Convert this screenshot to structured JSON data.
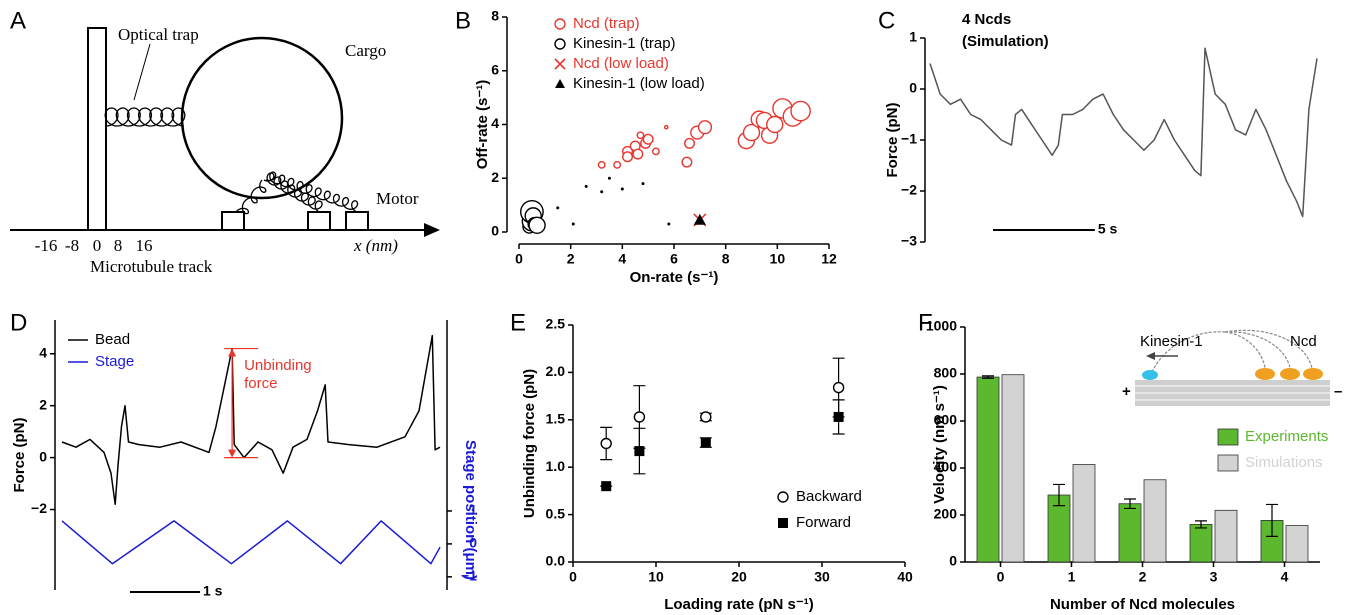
{
  "diagram_a": {
    "panel": "A",
    "trap_label": "Optical trap",
    "cargo_label": "Cargo",
    "motor_label": "Motor",
    "track_label": "Microtubule track",
    "axis_label": "x (nm)",
    "ticks": [
      "-16",
      "-8",
      "0",
      "8",
      "16"
    ]
  },
  "chart_data": [
    {
      "panel": "B",
      "type": "scatter",
      "xlabel": "On-rate (s⁻¹)",
      "ylabel": "Off-rate (s⁻¹)",
      "xlim": [
        0,
        12
      ],
      "xticks": [
        0,
        2,
        4,
        6,
        8,
        10,
        12
      ],
      "ylim": [
        0,
        8
      ],
      "yticks": [
        0,
        2,
        4,
        6,
        8
      ],
      "legend": "upper left",
      "series": [
        {
          "name": "Ncd (trap)",
          "color": "#e8362f",
          "marker": "open-circle",
          "x": [
            3.2,
            3.8,
            4.2,
            4.2,
            4.5,
            4.7,
            4.9,
            5.0,
            4.6,
            5.3,
            5.7,
            6.5,
            6.6,
            6.9,
            7.2,
            8.8,
            9.0,
            9.3,
            9.5,
            9.7,
            9.9,
            10.2,
            10.6,
            10.9
          ],
          "values": [
            2.5,
            2.5,
            3.0,
            2.8,
            3.2,
            3.6,
            3.3,
            3.45,
            2.9,
            3.0,
            3.9,
            2.6,
            3.3,
            3.7,
            3.9,
            3.4,
            3.7,
            4.2,
            4.15,
            3.6,
            4.0,
            4.6,
            4.3,
            4.5
          ],
          "sizes": [
            2,
            2,
            3,
            3,
            3,
            2,
            3,
            3,
            3,
            2,
            1,
            3,
            3,
            4,
            4,
            5,
            5,
            5,
            5,
            5,
            5,
            6,
            6,
            6
          ]
        },
        {
          "name": "Kinesin-1 (trap)",
          "color": "#000000",
          "marker": "open-circle",
          "x": [
            0.4,
            0.5,
            0.5,
            0.55,
            0.6,
            0.7,
            1.5,
            2.1,
            2.6,
            3.2,
            3.5,
            4.0,
            4.8,
            5.8
          ],
          "values": [
            0.2,
            0.4,
            0.75,
            0.6,
            0.3,
            0.25,
            0.9,
            0.3,
            1.7,
            1.5,
            2.0,
            1.6,
            1.8,
            0.3
          ],
          "sizes": [
            4,
            6,
            7,
            5,
            4,
            5,
            0.5,
            0.5,
            0.5,
            0.5,
            0.5,
            0.5,
            0.5,
            0.5
          ]
        },
        {
          "name": "Ncd (low load)",
          "color": "#e8362f",
          "marker": "x",
          "x": [
            7.0
          ],
          "values": [
            0.45
          ]
        },
        {
          "name": "Kinesin-1 (low load)",
          "color": "#000000",
          "marker": "triangle",
          "x": [
            7.0
          ],
          "values": [
            0.45
          ]
        }
      ]
    },
    {
      "panel": "C",
      "type": "line",
      "title": "4 Ncds",
      "subtitle": "(Simulation)",
      "ylabel": "Force (pN)",
      "xlim": [
        0,
        19
      ],
      "ylim": [
        -3,
        1
      ],
      "yticks": [
        {
          "value": -3,
          "label": "−3"
        },
        {
          "value": -2,
          "label": "−2"
        },
        {
          "value": -1,
          "label": "−1"
        },
        0,
        1
      ],
      "scale_bar": {
        "value": 5,
        "label": "5 s"
      },
      "x": [
        0,
        0.5,
        1,
        1.5,
        2,
        2.5,
        3,
        3.5,
        4,
        4.2,
        4.5,
        5,
        5.5,
        6,
        6.3,
        6.5,
        7,
        7.5,
        8,
        8.5,
        9,
        9.5,
        10,
        10.5,
        11,
        11.5,
        12,
        12.5,
        13,
        13.3,
        13.5,
        14,
        14.5,
        15,
        15.5,
        16,
        16.5,
        17,
        17.5,
        18,
        18.3,
        18.6,
        19
      ],
      "series": [
        {
          "color": "#555555",
          "values": [
            0.5,
            -0.1,
            -0.3,
            -0.2,
            -0.5,
            -0.6,
            -0.8,
            -1.0,
            -1.1,
            -0.5,
            -0.4,
            -0.7,
            -1.0,
            -1.3,
            -1.1,
            -0.5,
            -0.5,
            -0.4,
            -0.2,
            -0.1,
            -0.5,
            -0.8,
            -1.0,
            -1.2,
            -1.0,
            -0.6,
            -1.0,
            -1.3,
            -1.6,
            -1.7,
            0.8,
            -0.1,
            -0.3,
            -0.8,
            -0.9,
            -0.4,
            -0.8,
            -1.3,
            -1.8,
            -2.2,
            -2.5,
            -0.4,
            0.6
          ]
        }
      ]
    },
    {
      "panel": "D",
      "type": "line",
      "ylabel": "Force (pN)",
      "y2label": "Stage position (μm)",
      "annotation": "Unbinding force",
      "xlim": [
        0,
        5.4
      ],
      "ylim": [
        -5.1,
        5.3
      ],
      "yticks": [
        {
          "value": -2,
          "label": "−2"
        },
        0,
        2,
        4
      ],
      "y2lim": [
        -1.4,
        6.8
      ],
      "y2ticks": [
        {
          "value": -1,
          "label": "−1"
        },
        0,
        1
      ],
      "legend": "upper left",
      "scale_bar": {
        "value": 1,
        "label": "1 s"
      },
      "series": [
        {
          "name": "Bead",
          "color": "#000000",
          "x": [
            0,
            0.2,
            0.4,
            0.6,
            0.7,
            0.76,
            0.8,
            0.85,
            0.9,
            0.95,
            1.1,
            1.4,
            1.7,
            2.0,
            2.1,
            2.2,
            2.3,
            2.43,
            2.46,
            2.6,
            2.8,
            3.0,
            3.16,
            3.3,
            3.5,
            3.65,
            3.76,
            3.8,
            4.1,
            4.5,
            4.9,
            5.1,
            5.29,
            5.33,
            5.4
          ],
          "values": [
            0.6,
            0.4,
            0.7,
            0.2,
            -0.6,
            -1.8,
            -0.3,
            1.2,
            2.0,
            0.6,
            0.5,
            0.4,
            0.6,
            0.3,
            0.2,
            1.2,
            2.5,
            4.2,
            0.5,
            0.0,
            0.6,
            0.3,
            -0.6,
            0.4,
            0.7,
            1.8,
            2.8,
            0.6,
            0.5,
            0.4,
            0.8,
            1.8,
            4.7,
            0.3,
            0.4
          ]
        },
        {
          "name": "Stage",
          "color": "#1a1ad6",
          "axis": "y2",
          "x": [
            0,
            0.72,
            1.6,
            2.42,
            3.22,
            3.98,
            4.56,
            5.27,
            5.4
          ],
          "values": [
            0.7,
            -0.6,
            0.7,
            -0.6,
            0.7,
            -0.6,
            0.7,
            -0.6,
            -0.1
          ]
        }
      ]
    },
    {
      "panel": "E",
      "type": "scatter",
      "xlabel": "Loading rate (pN s⁻¹)",
      "ylabel": "Unbinding force (pN)",
      "xlim": [
        0,
        40
      ],
      "xticks": [
        0,
        10,
        20,
        30,
        40
      ],
      "ylim": [
        0,
        2.5
      ],
      "yticks": [
        {
          "value": 0,
          "label": "0.0"
        },
        0.5,
        {
          "value": 1,
          "label": "1.0"
        },
        1.5,
        {
          "value": 2,
          "label": "2.0"
        },
        2.5
      ],
      "legend": "lower right",
      "series": [
        {
          "name": "Backward",
          "color": "#000000",
          "marker": "open-circle",
          "x": [
            4,
            8,
            16,
            32
          ],
          "values": [
            1.25,
            1.53,
            1.53,
            1.84
          ],
          "errors": [
            0.17,
            0.33,
            0.04,
            0.31
          ]
        },
        {
          "name": "Forward",
          "color": "#000000",
          "marker": "filled-square",
          "x": [
            4,
            8,
            16,
            32
          ],
          "values": [
            0.8,
            1.17,
            1.26,
            1.53
          ],
          "errors": [
            0,
            0.24,
            0.05,
            0.18
          ]
        }
      ]
    },
    {
      "panel": "F",
      "type": "bar",
      "xlabel": "Number of Ncd molecules",
      "ylabel": "Velocity (nm s⁻¹)",
      "categories": [
        "0",
        "1",
        "2",
        "3",
        "4"
      ],
      "ylim": [
        0,
        1000
      ],
      "yticks": [
        0,
        200,
        400,
        600,
        800,
        1000
      ],
      "legend": "center right",
      "inset": {
        "kinesin": "Kinesin-1",
        "ncd": "Ncd",
        "plus": "+",
        "minus": "–"
      },
      "series": [
        {
          "name": "Experiments",
          "color": "#5cb82e",
          "values": [
            787,
            285,
            248,
            160,
            177
          ],
          "errors": [
            5,
            45,
            20,
            15,
            68
          ]
        },
        {
          "name": "Simulations",
          "color": "#d3d3d3",
          "values": [
            797,
            415,
            350,
            220,
            155
          ]
        }
      ]
    }
  ]
}
